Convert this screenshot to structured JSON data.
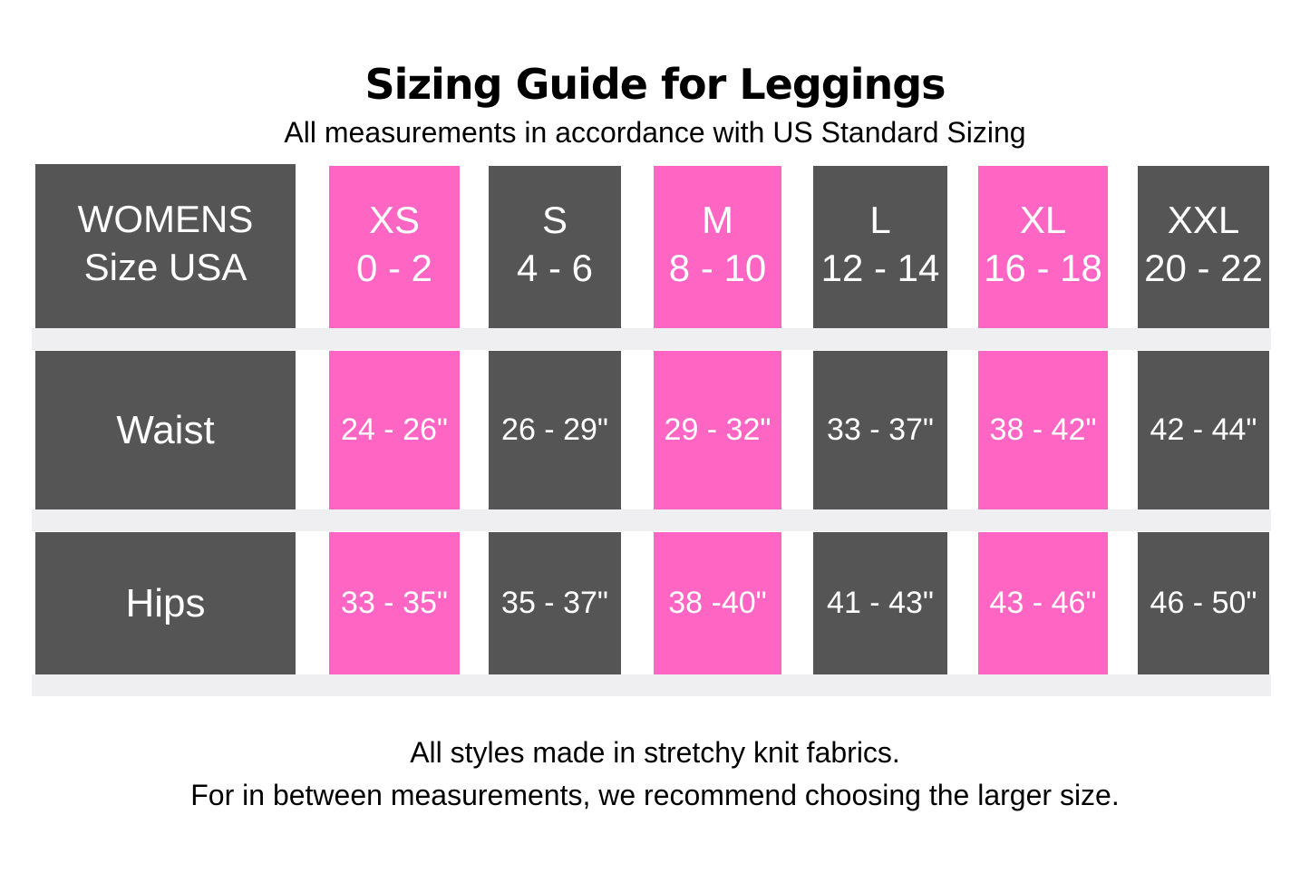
{
  "title": "Sizing Guide for Leggings",
  "subtitle": "All measurements in accordance with US Standard Sizing",
  "colors": {
    "dark": "#555555",
    "pink": "#ff66c4",
    "band": "#efeff1"
  },
  "table": {
    "header_label": [
      "WOMENS",
      "Size USA"
    ],
    "row_labels": [
      "Waist",
      "Hips"
    ],
    "columns": [
      {
        "size": "XS",
        "range": "0 - 2",
        "waist": "24 - 26\"",
        "hips": "33 - 35\"",
        "color": "pink"
      },
      {
        "size": "S",
        "range": "4 - 6",
        "waist": "26 - 29\"",
        "hips": "35 - 37\"",
        "color": "dark"
      },
      {
        "size": "M",
        "range": "8 - 10",
        "waist": "29 - 32\"",
        "hips": "38 -40\"",
        "color": "pink"
      },
      {
        "size": "L",
        "range": "12 - 14",
        "waist": "33 - 37\"",
        "hips": "41 - 43\"",
        "color": "dark"
      },
      {
        "size": "XL",
        "range": "16 - 18",
        "waist": "38 - 42\"",
        "hips": "43 - 46\"",
        "color": "pink"
      },
      {
        "size": "XXL",
        "range": "20 - 22",
        "waist": "42 - 44\"",
        "hips": "46 - 50\"",
        "color": "dark"
      }
    ]
  },
  "footer": [
    "All styles made in stretchy knit fabrics.",
    "For in between measurements, we recommend choosing the larger size."
  ]
}
